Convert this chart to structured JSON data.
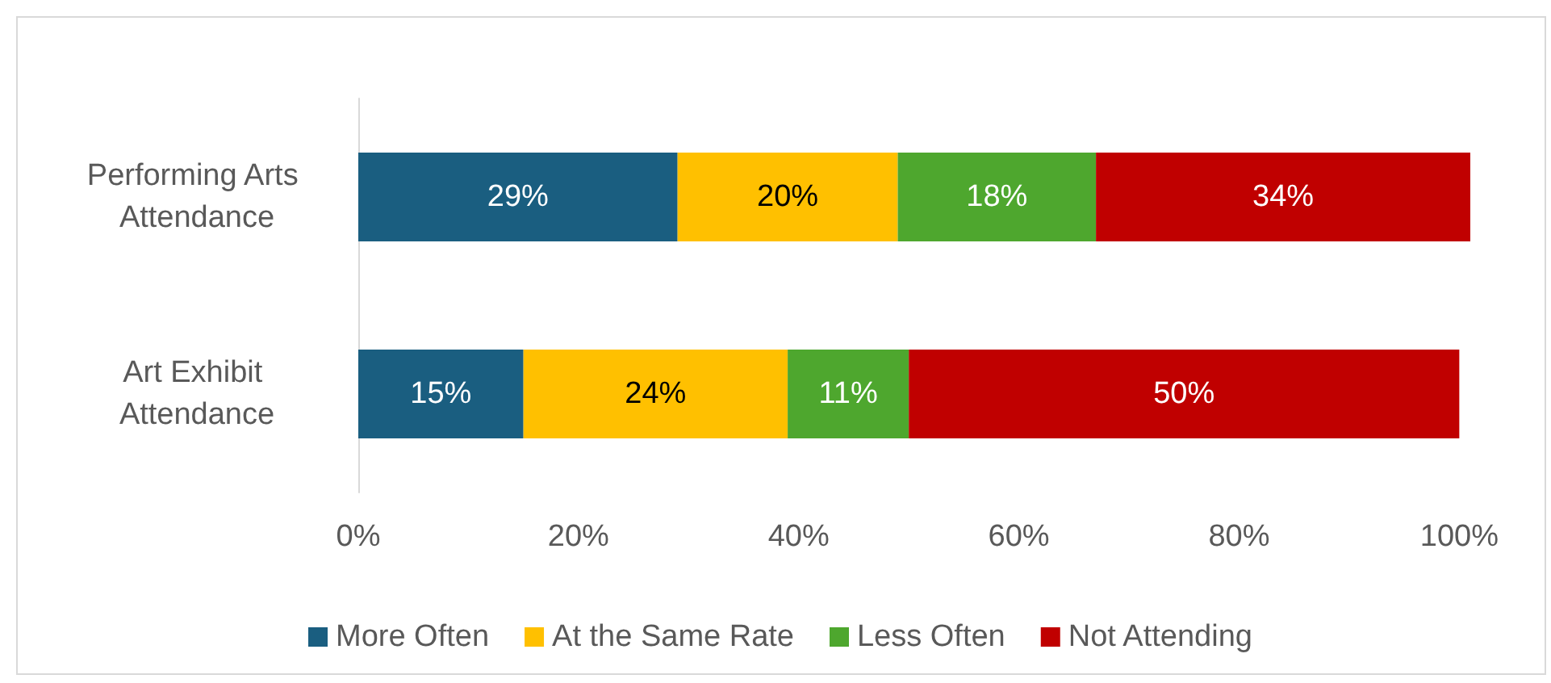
{
  "chart_data": {
    "type": "bar",
    "orientation": "horizontal",
    "stacked": true,
    "categories": [
      "Performing Arts Attendance",
      "Art Exhibit Attendance"
    ],
    "series": [
      {
        "name": "More Often",
        "color": "#1a5e80",
        "values": [
          29,
          15
        ],
        "value_labels": [
          "29%",
          "15%"
        ]
      },
      {
        "name": "At the Same Rate",
        "color": "#ffc000",
        "values": [
          20,
          24
        ],
        "value_labels": [
          "20%",
          "24%"
        ]
      },
      {
        "name": "Less Often",
        "color": "#4ea72e",
        "values": [
          18,
          11
        ],
        "value_labels": [
          "18%",
          "11%"
        ]
      },
      {
        "name": "Not Attending",
        "color": "#c00000",
        "values": [
          34,
          50
        ],
        "value_labels": [
          "34%",
          "50%"
        ]
      }
    ],
    "xlim": [
      0,
      101
    ],
    "xticks": [
      {
        "value": 0,
        "label": "0%"
      },
      {
        "value": 20,
        "label": "20%"
      },
      {
        "value": 40,
        "label": "40%"
      },
      {
        "value": 60,
        "label": "60%"
      },
      {
        "value": 80,
        "label": "80%"
      },
      {
        "value": 100,
        "label": "100%"
      }
    ],
    "grid": false,
    "legend": "bottom"
  }
}
